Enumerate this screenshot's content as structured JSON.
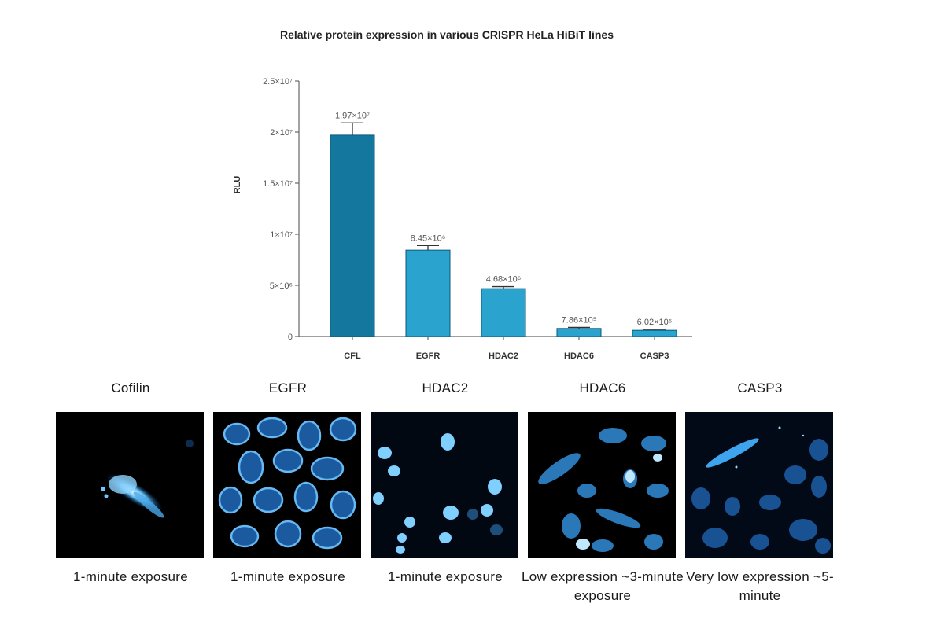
{
  "chart_data": {
    "type": "bar",
    "title": "Relative protein expression in various CRISPR HeLa HiBiT lines",
    "ylabel": "RLU",
    "xlabel": "",
    "ylim": [
      0,
      25000000
    ],
    "yticks": [
      0,
      5000000,
      10000000,
      15000000,
      20000000,
      25000000
    ],
    "ytick_labels": [
      "0",
      "5×10⁶",
      "1×10⁷",
      "1.5×10⁷",
      "2×10⁷",
      "2.5×10⁷"
    ],
    "categories": [
      "CFL",
      "EGFR",
      "HDAC2",
      "HDAC6",
      "CASP3"
    ],
    "values": [
      19700000,
      8450000,
      4680000,
      786000,
      602000
    ],
    "error": [
      1200000,
      450000,
      200000,
      110000,
      90000
    ],
    "data_labels": [
      "1.97×10⁷",
      "8.45×10⁶",
      "4.68×10⁶",
      "7.86×10⁵",
      "6.02×10⁵"
    ],
    "colors": [
      "#14789e",
      "#2aa3cf",
      "#2aa3cf",
      "#2aa3cf",
      "#2aa3cf"
    ],
    "grid": false,
    "legend": "none"
  },
  "panels": [
    {
      "title": "Cofilin",
      "caption": "1-minute exposure"
    },
    {
      "title": "EGFR",
      "caption": "1-minute exposure"
    },
    {
      "title": "HDAC2",
      "caption": "1-minute exposure"
    },
    {
      "title": "HDAC6",
      "caption": "Low expression ~3-minute exposure"
    },
    {
      "title": "CASP3",
      "caption": "Very low expression ~5-minute"
    }
  ]
}
